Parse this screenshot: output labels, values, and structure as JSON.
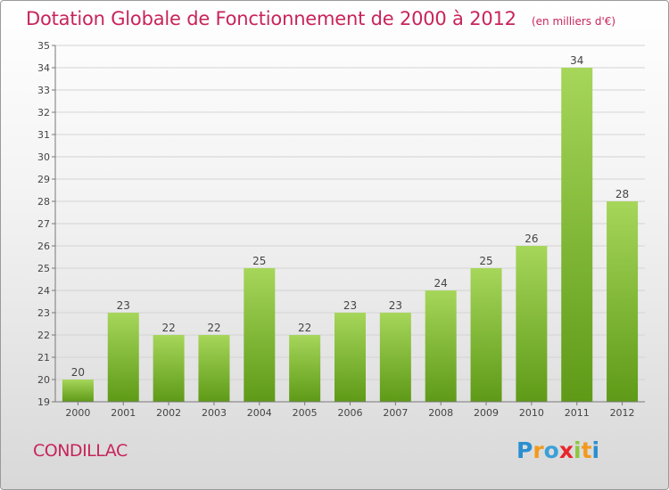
{
  "header": {
    "title": "Dotation Globale de Fonctionnement de 2000 à 2012",
    "subtitle": "(en milliers d'€)"
  },
  "footer": {
    "commune": "CONDILLAC",
    "brand": "Proxiti"
  },
  "colors": {
    "title": "#c8245a",
    "bar_light": "#a6d65a",
    "bar_dark": "#5e9a17",
    "grid": "#d0d0d0"
  },
  "chart_data": {
    "type": "bar",
    "title": "Dotation Globale de Fonctionnement de 2000 à 2012",
    "subtitle": "(en milliers d'€)",
    "xlabel": "",
    "ylabel": "",
    "categories": [
      "2000",
      "2001",
      "2002",
      "2003",
      "2004",
      "2005",
      "2006",
      "2007",
      "2008",
      "2009",
      "2010",
      "2011",
      "2012"
    ],
    "values": [
      20,
      23,
      22,
      22,
      25,
      22,
      23,
      23,
      24,
      25,
      26,
      34,
      28
    ],
    "ylim": [
      19,
      35
    ],
    "yticks": [
      19,
      20,
      21,
      22,
      23,
      24,
      25,
      26,
      27,
      28,
      29,
      30,
      31,
      32,
      33,
      34,
      35
    ],
    "grid": true,
    "legend": "none"
  }
}
